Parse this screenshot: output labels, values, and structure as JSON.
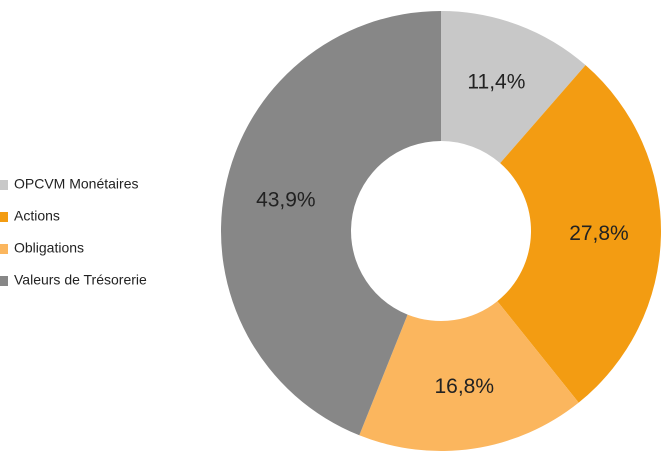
{
  "chart_data": {
    "type": "donut",
    "categories": [
      "OPCVM Monétaires",
      "Actions",
      "Obligations",
      "Valeurs de Trésorerie"
    ],
    "values": [
      11.4,
      27.8,
      16.8,
      43.9
    ],
    "value_labels": [
      "11,4%",
      "27,8%",
      "16,8%",
      "43,9%"
    ],
    "colors": [
      "#c8c8c8",
      "#f39c12",
      "#fbb65e",
      "#878787"
    ],
    "legend": "left"
  }
}
